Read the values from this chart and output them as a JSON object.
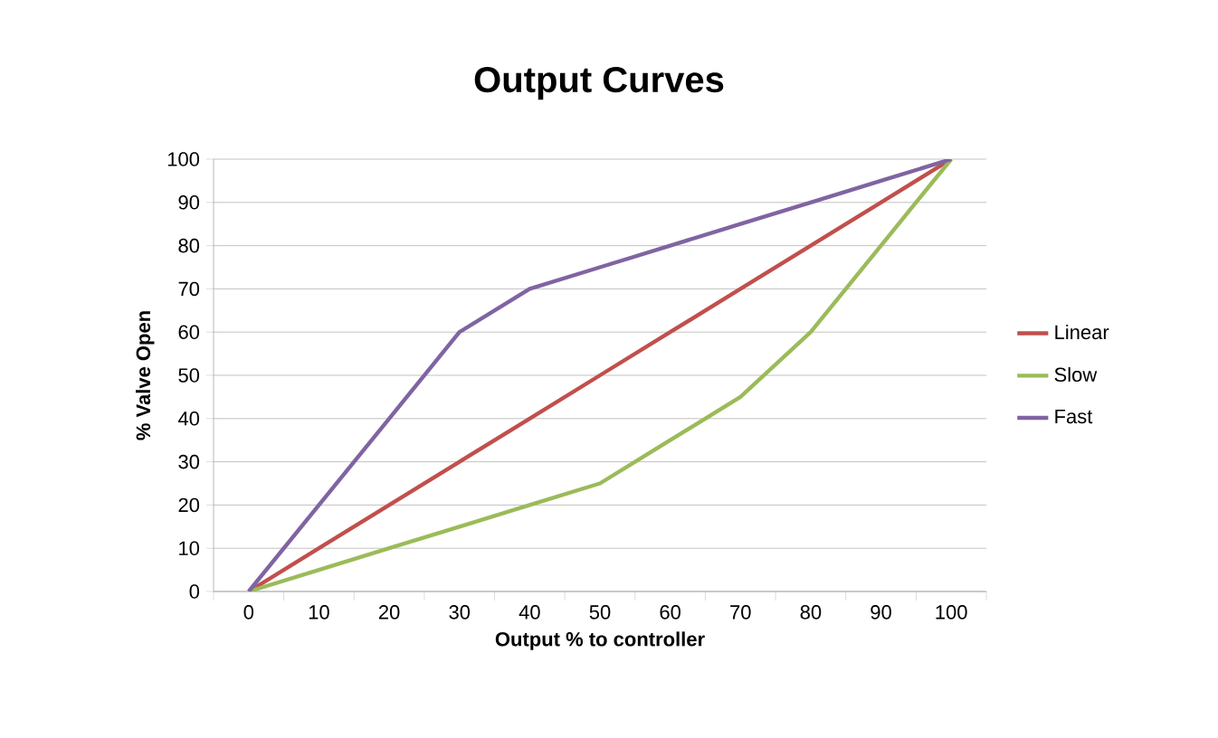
{
  "chart_data": {
    "type": "line",
    "title": "Output Curves",
    "xlabel": "Output % to controller",
    "ylabel": "% Valve Open",
    "categories": [
      "0",
      "10",
      "20",
      "30",
      "40",
      "50",
      "60",
      "70",
      "80",
      "90",
      "100"
    ],
    "series": [
      {
        "name": "Linear",
        "color": "#c0504d",
        "values": [
          0,
          10,
          20,
          30,
          40,
          50,
          60,
          70,
          80,
          90,
          100
        ]
      },
      {
        "name": "Slow",
        "color": "#9bbb59",
        "values": [
          0,
          5,
          10,
          15,
          20,
          25,
          35,
          45,
          60,
          80,
          100
        ]
      },
      {
        "name": "Fast",
        "color": "#8064a2",
        "values": [
          0,
          20,
          40,
          60,
          70,
          75,
          80,
          85,
          90,
          95,
          100
        ]
      }
    ],
    "ylim": [
      0,
      100
    ],
    "yticks": [
      0,
      10,
      20,
      30,
      40,
      50,
      60,
      70,
      80,
      90,
      100
    ],
    "grid": "y",
    "legend": "right",
    "marker": "none",
    "line_style": "solid"
  }
}
